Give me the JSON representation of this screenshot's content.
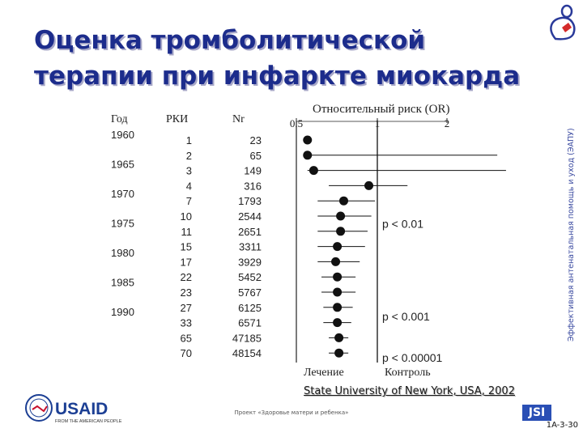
{
  "slide": {
    "title_line1": "Оценка тромболитической",
    "title_line2": "терапии при инфаркте миокарда",
    "side_text": "Эффективная антенатальная помощь и уход (ЭАПУ)",
    "source": "State University of New York, USA, 2002",
    "project": "Проект «Здоровье матери и ребенка»",
    "slide_number": "1A-3-30",
    "usaid_name": "USAID",
    "usaid_tagline": "FROM THE AMERICAN PEOPLE",
    "jsi_label": "JSI",
    "colors": {
      "title": "#1c2c8c",
      "side_text": "#3a4aa0",
      "jsi": "#2a4fb5",
      "usaid_red": "#c8102e",
      "usaid_blue": "#1c3f94"
    }
  },
  "chart_data": {
    "type": "forest",
    "headers": {
      "year": "Год",
      "rki": "РКИ",
      "n": "Nr"
    },
    "axis_title": "Относительный риск (OR)",
    "x_ticks": [
      {
        "value": 0.5,
        "label": "0.5"
      },
      {
        "value": 1,
        "label": "1"
      },
      {
        "value": 2,
        "label": "2"
      }
    ],
    "bottom_labels": {
      "left": "Лечение",
      "right": "Контроль"
    },
    "years": [
      "1960",
      "1965",
      "1970",
      "1975",
      "1980",
      "1985",
      "1990"
    ],
    "rows": [
      {
        "rki": "1",
        "n": "23",
        "or": 0.55,
        "ci": [
          0.55,
          0.55
        ]
      },
      {
        "rki": "2",
        "n": "65",
        "or": 0.55,
        "ci": [
          0.55,
          3.3
        ]
      },
      {
        "rki": "3",
        "n": "149",
        "or": 0.58,
        "ci": [
          0.55,
          3.6
        ]
      },
      {
        "rki": "4",
        "n": "316",
        "or": 0.93,
        "ci": [
          0.66,
          1.35
        ]
      },
      {
        "rki": "7",
        "n": "1793",
        "or": 0.75,
        "ci": [
          0.6,
          0.98
        ]
      },
      {
        "rki": "10",
        "n": "2544",
        "or": 0.73,
        "ci": [
          0.6,
          0.95
        ]
      },
      {
        "rki": "11",
        "n": "2651",
        "or": 0.73,
        "ci": [
          0.6,
          0.92
        ]
      },
      {
        "rki": "15",
        "n": "3311",
        "or": 0.71,
        "ci": [
          0.6,
          0.9
        ]
      },
      {
        "rki": "17",
        "n": "3929",
        "or": 0.7,
        "ci": [
          0.6,
          0.86
        ]
      },
      {
        "rki": "22",
        "n": "5452",
        "or": 0.71,
        "ci": [
          0.62,
          0.83
        ]
      },
      {
        "rki": "23",
        "n": "5767",
        "or": 0.71,
        "ci": [
          0.62,
          0.83
        ]
      },
      {
        "rki": "27",
        "n": "6125",
        "or": 0.71,
        "ci": [
          0.63,
          0.81
        ]
      },
      {
        "rki": "33",
        "n": "6571",
        "or": 0.71,
        "ci": [
          0.63,
          0.8
        ]
      },
      {
        "rki": "65",
        "n": "47185",
        "or": 0.72,
        "ci": [
          0.66,
          0.78
        ]
      },
      {
        "rki": "70",
        "n": "48154",
        "or": 0.72,
        "ci": [
          0.66,
          0.78
        ]
      }
    ],
    "annotations": [
      {
        "text": "p < 0.01",
        "row": 5.5
      },
      {
        "text": "p < 0.001",
        "row": 11.6
      },
      {
        "text": "p < 0.00001",
        "row": 14.3
      }
    ]
  }
}
